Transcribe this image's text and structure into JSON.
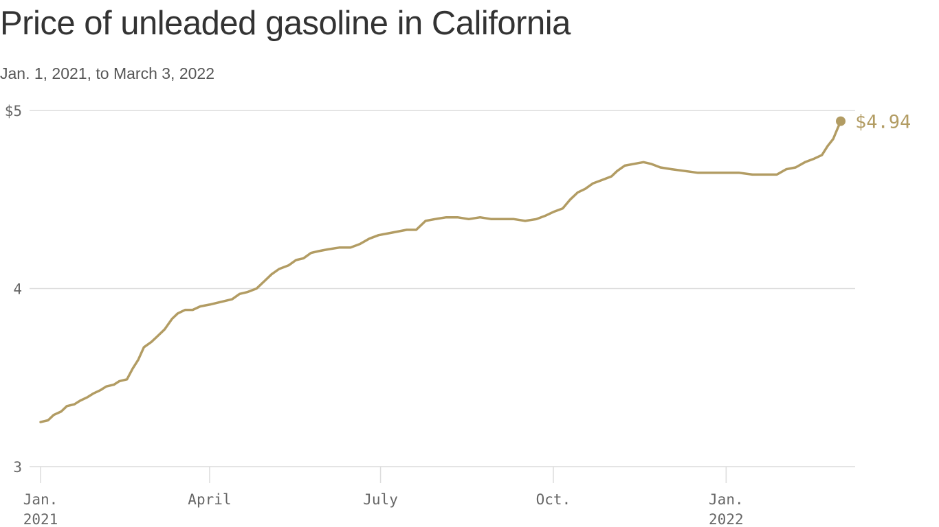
{
  "title": "Price of unleaded gasoline in California",
  "subtitle": "Jan. 1, 2021, to March 3, 2022",
  "colors": {
    "line": "#b29c63",
    "grid": "#dcdcdc",
    "tick_text": "#666666",
    "title": "#333333"
  },
  "chart_data": {
    "type": "line",
    "title": "Price of unleaded gasoline in California",
    "subtitle": "Jan. 1, 2021, to March 3, 2022",
    "xlabel": "",
    "ylabel": "",
    "ylim": [
      3,
      5
    ],
    "xlim": [
      "2021-01-01",
      "2022-03-03"
    ],
    "grid": true,
    "y_ticks": [
      {
        "value": 3,
        "label": "3"
      },
      {
        "value": 4,
        "label": "4"
      },
      {
        "value": 5,
        "label": "$5"
      }
    ],
    "x_ticks": [
      {
        "date": "2021-01-01",
        "line1": "Jan.",
        "line2": "2021"
      },
      {
        "date": "2021-04-01",
        "line1": "April",
        "line2": ""
      },
      {
        "date": "2021-07-01",
        "line1": "July",
        "line2": ""
      },
      {
        "date": "2021-10-01",
        "line1": "Oct.",
        "line2": ""
      },
      {
        "date": "2022-01-01",
        "line1": "Jan.",
        "line2": "2022"
      }
    ],
    "end_label": "$4.94",
    "series": [
      {
        "points": [
          [
            "2021-01-01",
            3.25
          ],
          [
            "2021-01-05",
            3.26
          ],
          [
            "2021-01-08",
            3.29
          ],
          [
            "2021-01-12",
            3.31
          ],
          [
            "2021-01-15",
            3.34
          ],
          [
            "2021-01-19",
            3.35
          ],
          [
            "2021-01-22",
            3.37
          ],
          [
            "2021-01-26",
            3.39
          ],
          [
            "2021-01-29",
            3.41
          ],
          [
            "2021-02-02",
            3.43
          ],
          [
            "2021-02-05",
            3.45
          ],
          [
            "2021-02-09",
            3.46
          ],
          [
            "2021-02-12",
            3.48
          ],
          [
            "2021-02-16",
            3.49
          ],
          [
            "2021-02-19",
            3.55
          ],
          [
            "2021-02-22",
            3.6
          ],
          [
            "2021-02-25",
            3.67
          ],
          [
            "2021-03-01",
            3.7
          ],
          [
            "2021-03-04",
            3.73
          ],
          [
            "2021-03-08",
            3.77
          ],
          [
            "2021-03-12",
            3.83
          ],
          [
            "2021-03-15",
            3.86
          ],
          [
            "2021-03-19",
            3.88
          ],
          [
            "2021-03-23",
            3.88
          ],
          [
            "2021-03-27",
            3.9
          ],
          [
            "2021-04-01",
            3.91
          ],
          [
            "2021-04-05",
            3.92
          ],
          [
            "2021-04-09",
            3.93
          ],
          [
            "2021-04-13",
            3.94
          ],
          [
            "2021-04-17",
            3.97
          ],
          [
            "2021-04-21",
            3.98
          ],
          [
            "2021-04-26",
            4.0
          ],
          [
            "2021-04-30",
            4.04
          ],
          [
            "2021-05-04",
            4.08
          ],
          [
            "2021-05-08",
            4.11
          ],
          [
            "2021-05-13",
            4.13
          ],
          [
            "2021-05-17",
            4.16
          ],
          [
            "2021-05-21",
            4.17
          ],
          [
            "2021-05-25",
            4.2
          ],
          [
            "2021-05-29",
            4.21
          ],
          [
            "2021-06-03",
            4.22
          ],
          [
            "2021-06-09",
            4.23
          ],
          [
            "2021-06-15",
            4.23
          ],
          [
            "2021-06-20",
            4.25
          ],
          [
            "2021-06-25",
            4.28
          ],
          [
            "2021-06-30",
            4.3
          ],
          [
            "2021-07-05",
            4.31
          ],
          [
            "2021-07-10",
            4.32
          ],
          [
            "2021-07-15",
            4.33
          ],
          [
            "2021-07-20",
            4.33
          ],
          [
            "2021-07-25",
            4.38
          ],
          [
            "2021-07-30",
            4.39
          ],
          [
            "2021-08-05",
            4.4
          ],
          [
            "2021-08-11",
            4.4
          ],
          [
            "2021-08-17",
            4.39
          ],
          [
            "2021-08-23",
            4.4
          ],
          [
            "2021-08-29",
            4.39
          ],
          [
            "2021-09-04",
            4.39
          ],
          [
            "2021-09-10",
            4.39
          ],
          [
            "2021-09-16",
            4.38
          ],
          [
            "2021-09-22",
            4.39
          ],
          [
            "2021-09-27",
            4.41
          ],
          [
            "2021-10-01",
            4.43
          ],
          [
            "2021-10-06",
            4.45
          ],
          [
            "2021-10-10",
            4.5
          ],
          [
            "2021-10-14",
            4.54
          ],
          [
            "2021-10-18",
            4.56
          ],
          [
            "2021-10-22",
            4.59
          ],
          [
            "2021-10-27",
            4.61
          ],
          [
            "2021-11-01",
            4.63
          ],
          [
            "2021-11-04",
            4.66
          ],
          [
            "2021-11-08",
            4.69
          ],
          [
            "2021-11-13",
            4.7
          ],
          [
            "2021-11-18",
            4.71
          ],
          [
            "2021-11-22",
            4.7
          ],
          [
            "2021-11-27",
            4.68
          ],
          [
            "2021-12-03",
            4.67
          ],
          [
            "2021-12-10",
            4.66
          ],
          [
            "2021-12-17",
            4.65
          ],
          [
            "2021-12-24",
            4.65
          ],
          [
            "2022-01-01",
            4.65
          ],
          [
            "2022-01-08",
            4.65
          ],
          [
            "2022-01-15",
            4.64
          ],
          [
            "2022-01-22",
            4.64
          ],
          [
            "2022-01-28",
            4.64
          ],
          [
            "2022-02-02",
            4.67
          ],
          [
            "2022-02-07",
            4.68
          ],
          [
            "2022-02-12",
            4.71
          ],
          [
            "2022-02-17",
            4.73
          ],
          [
            "2022-02-21",
            4.75
          ],
          [
            "2022-02-24",
            4.8
          ],
          [
            "2022-02-27",
            4.84
          ],
          [
            "2022-03-01",
            4.89
          ],
          [
            "2022-03-03",
            4.94
          ]
        ]
      }
    ]
  }
}
